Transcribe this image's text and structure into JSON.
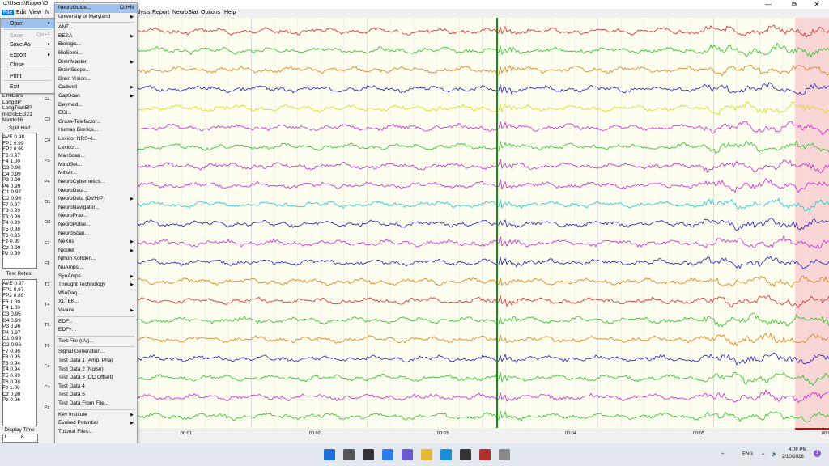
{
  "window": {
    "title": "c:\\Users\\Ripper\\D",
    "minimize": "—",
    "maximize": "⧉",
    "close": "✕"
  },
  "menubar": {
    "file": "File",
    "edit": "Edit",
    "view": "View",
    "n": "N",
    "analysis": "alysis",
    "report": "Report",
    "neurostat": "NeuroStat",
    "options": "Options",
    "help": "Help"
  },
  "file_menu": {
    "items": [
      {
        "label": "Open",
        "shortcut": "",
        "submenu": true,
        "highlighted": true,
        "disabled": false
      },
      {
        "label": "Save",
        "shortcut": "Ctrl+S",
        "submenu": false,
        "highlighted": false,
        "disabled": true
      },
      {
        "label": "Save As",
        "shortcut": "",
        "submenu": true,
        "highlighted": false,
        "disabled": false
      },
      {
        "label": "Export",
        "shortcut": "",
        "submenu": true,
        "highlighted": false,
        "disabled": false
      },
      {
        "label": "Close",
        "shortcut": "",
        "submenu": false,
        "highlighted": false,
        "disabled": false
      },
      {
        "label": "Print",
        "shortcut": "",
        "submenu": false,
        "highlighted": false,
        "disabled": false
      },
      {
        "label": "Exit",
        "shortcut": "",
        "submenu": false,
        "highlighted": false,
        "disabled": false
      }
    ]
  },
  "open_menu": {
    "items": [
      {
        "label": "NeuroGuide...",
        "shortcut": "Ctrl+N",
        "submenu": false
      },
      {
        "label": "University of Maryland",
        "shortcut": "",
        "submenu": true
      },
      {
        "label": "ANT...",
        "shortcut": "",
        "submenu": false
      },
      {
        "label": "BESA",
        "shortcut": "",
        "submenu": true
      },
      {
        "label": "Biologic...",
        "shortcut": "",
        "submenu": false
      },
      {
        "label": "BioSemi...",
        "shortcut": "",
        "submenu": false
      },
      {
        "label": "BrainMaster",
        "shortcut": "",
        "submenu": true
      },
      {
        "label": "BrainScope...",
        "shortcut": "",
        "submenu": false
      },
      {
        "label": "Brain Vision...",
        "shortcut": "",
        "submenu": false
      },
      {
        "label": "Cadwell",
        "shortcut": "",
        "submenu": true
      },
      {
        "label": "CapScan",
        "shortcut": "",
        "submenu": true
      },
      {
        "label": "Deymed...",
        "shortcut": "",
        "submenu": false
      },
      {
        "label": "EGI...",
        "shortcut": "",
        "submenu": false
      },
      {
        "label": "Grass-Telefactor...",
        "shortcut": "",
        "submenu": false
      },
      {
        "label": "Human Bionics...",
        "shortcut": "",
        "submenu": false
      },
      {
        "label": "Lexicor NRS-4...",
        "shortcut": "",
        "submenu": false
      },
      {
        "label": "Lexicor...",
        "shortcut": "",
        "submenu": false
      },
      {
        "label": "ManScan...",
        "shortcut": "",
        "submenu": false
      },
      {
        "label": "MindSet...",
        "shortcut": "",
        "submenu": false
      },
      {
        "label": "Mitsar...",
        "shortcut": "",
        "submenu": false
      },
      {
        "label": "NeuroCybernetics...",
        "shortcut": "",
        "submenu": false
      },
      {
        "label": "NeuroData...",
        "shortcut": "",
        "submenu": false
      },
      {
        "label": "NeuroData (DVHIP)",
        "shortcut": "",
        "submenu": true
      },
      {
        "label": "NeuroNavigator...",
        "shortcut": "",
        "submenu": false
      },
      {
        "label": "NeuroPrax...",
        "shortcut": "",
        "submenu": false
      },
      {
        "label": "NeuroPulse...",
        "shortcut": "",
        "submenu": false
      },
      {
        "label": "NeuroScan...",
        "shortcut": "",
        "submenu": false
      },
      {
        "label": "NeXus",
        "shortcut": "",
        "submenu": true
      },
      {
        "label": "Nicolet",
        "shortcut": "",
        "submenu": true
      },
      {
        "label": "Nihon Kohden...",
        "shortcut": "",
        "submenu": false
      },
      {
        "label": "NuAmps...",
        "shortcut": "",
        "submenu": false
      },
      {
        "label": "SynAmps",
        "shortcut": "",
        "submenu": true
      },
      {
        "label": "Thought Technology",
        "shortcut": "",
        "submenu": true
      },
      {
        "label": "WinDaq...",
        "shortcut": "",
        "submenu": false
      },
      {
        "label": "XLTEK...",
        "shortcut": "",
        "submenu": false
      },
      {
        "label": "Vivaire",
        "shortcut": "",
        "submenu": true
      },
      {
        "label": "EDF...",
        "shortcut": "",
        "submenu": false
      },
      {
        "label": "EDF+...",
        "shortcut": "",
        "submenu": false
      },
      {
        "label": "Text File (uV)...",
        "shortcut": "",
        "submenu": false
      },
      {
        "label": "Signal Generation...",
        "shortcut": "",
        "submenu": false
      },
      {
        "label": "Test Data 1 (Amp, Pha)",
        "shortcut": "",
        "submenu": false
      },
      {
        "label": "Test Data 2 (Noise)",
        "shortcut": "",
        "submenu": false
      },
      {
        "label": "Test Data 3 (DC Offset)",
        "shortcut": "",
        "submenu": false
      },
      {
        "label": "Test Data 4",
        "shortcut": "",
        "submenu": false
      },
      {
        "label": "Test Data 5",
        "shortcut": "",
        "submenu": false
      },
      {
        "label": "Test Data From File...",
        "shortcut": "",
        "submenu": false
      },
      {
        "label": "Key Institute",
        "shortcut": "",
        "submenu": true
      },
      {
        "label": "Evoked Potential",
        "shortcut": "",
        "submenu": true
      },
      {
        "label": "Tutorial Files...",
        "shortcut": "",
        "submenu": false
      }
    ]
  },
  "left_panel": {
    "montages": [
      "LinkEars",
      "LongBP",
      "LongTranBP",
      "microEEG21",
      "Mindo16"
    ],
    "split_half": {
      "title": "Split Half",
      "values": [
        "AVE 0.98",
        "FP1 0.99",
        "FP2 0.99",
        "F3 0.97",
        "F4 1.00",
        "C3 0.98",
        "C4 0.99",
        "P3 0.99",
        "P4 0.99",
        "O1 0.97",
        "O2 0.96",
        "F7 0.97",
        "F8 0.99",
        "T3 0.99",
        "T4 0.99",
        "T5 0.98",
        "T6 0.95",
        "Fz 0.99",
        "Cz 0.99",
        "Pz 0.99"
      ]
    },
    "test_retest": {
      "title": "Test Retest",
      "values": [
        "AVE 0.97",
        "FP1 0.97",
        "FP2 0.89",
        "F3 1.00",
        "F4 1.00",
        "C3 0.95",
        "C4 0.99",
        "P3 0.96",
        "P4 0.97",
        "O1 0.99",
        "O2 0.96",
        "F7 0.96",
        "F8 0.95",
        "T3 0.94",
        "T4 0.94",
        "T5 0.99",
        "T6 0.98",
        "Fz 1.00",
        "Cz 0.98",
        "Pz 0.96"
      ]
    },
    "display_time": {
      "label": "Display Time",
      "value": "6"
    }
  },
  "channel_labels": [
    "F4",
    "C3",
    "C4",
    "P3",
    "P4",
    "O1",
    "O2",
    "F7",
    "F8",
    "T3",
    "T4",
    "T5",
    "T6",
    "Fz",
    "Cz",
    "Pz"
  ],
  "time_ticks": [
    "00:01",
    "00:02",
    "00:03",
    "00:04",
    "00:05",
    "00:0"
  ],
  "eeg": {
    "channel_colors": [
      "#e02020",
      "#22c020",
      "#e07a10",
      "#1818c8",
      "#d8d820",
      "#d020d0",
      "#22c020",
      "#c020c0",
      "#d020d0",
      "#10c8c8",
      "#1818c8",
      "#d020d0",
      "#1818c8",
      "#e07a10",
      "#e02020",
      "#22c020",
      "#e07a10",
      "#1818c8",
      "#22c020",
      "#d020d0",
      "#22c020"
    ],
    "marker_color": "#1a8a1a",
    "artifact_shade": "#f9d6d6"
  },
  "taskbar": {
    "icons": [
      "windows-start",
      "search",
      "task-view",
      "widgets",
      "chat",
      "file-explorer",
      "edge",
      "store",
      "app-red",
      "app-neuroguide"
    ],
    "lang": "ENG",
    "time": "4:06 PM",
    "date": "2/10/2026"
  }
}
